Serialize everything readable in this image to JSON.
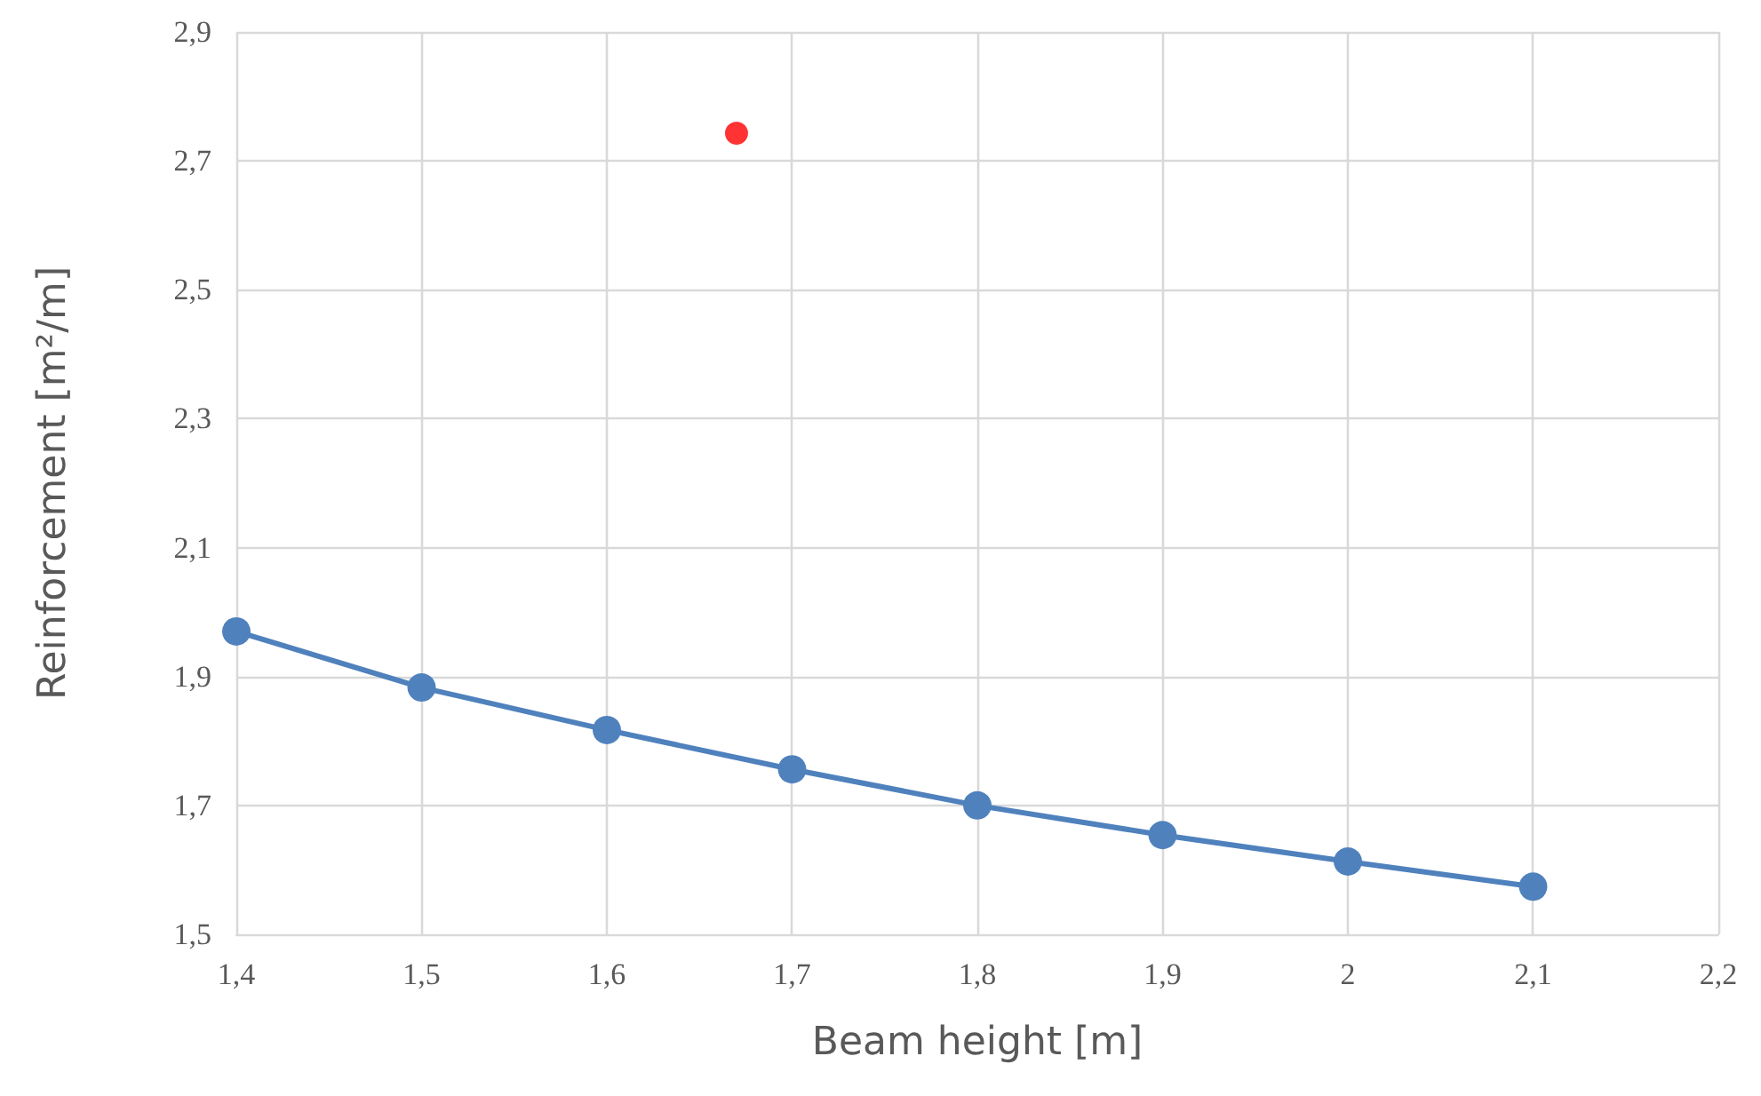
{
  "chart_data": {
    "type": "line",
    "xlabel": "Beam height [m]",
    "ylabel": "Reinforcement [m²/m]",
    "x": [
      1.4,
      1.5,
      1.6,
      1.7,
      1.8,
      1.9,
      2.0,
      2.1
    ],
    "series": [
      {
        "color": "#4f81bd",
        "values": [
          1.97,
          1.883,
          1.817,
          1.756,
          1.7,
          1.654,
          1.613,
          1.574
        ]
      },
      {
        "type": "scatter",
        "color": "#ff0000",
        "x": [
          1.67
        ],
        "values": [
          2.743
        ]
      }
    ],
    "xlim": [
      1.4,
      2.2
    ],
    "ylim": [
      1.5,
      2.9
    ],
    "xticks": [
      {
        "value": 1.4,
        "label": "1,4"
      },
      {
        "value": 1.5,
        "label": "1,5"
      },
      {
        "value": 1.6,
        "label": "1,6"
      },
      {
        "value": 1.7,
        "label": "1,7"
      },
      {
        "value": 1.8,
        "label": "1,8"
      },
      {
        "value": 1.9,
        "label": "1,9"
      },
      {
        "value": 2,
        "label": "2"
      },
      {
        "value": 2.1,
        "label": "2,1"
      },
      {
        "value": 2.2,
        "label": "2,2"
      }
    ],
    "yticks": [
      {
        "value": 1.5,
        "label": "1,5"
      },
      {
        "value": 1.7,
        "label": "1,7"
      },
      {
        "value": 1.9,
        "label": "1,9"
      },
      {
        "value": 2.1,
        "label": "2,1"
      },
      {
        "value": 2.3,
        "label": "2,3"
      },
      {
        "value": 2.5,
        "label": "2,5"
      },
      {
        "value": 2.7,
        "label": "2,7"
      },
      {
        "value": 2.9,
        "label": "2,9"
      }
    ],
    "grid": true,
    "marker": "circle",
    "line_style": "solid"
  }
}
